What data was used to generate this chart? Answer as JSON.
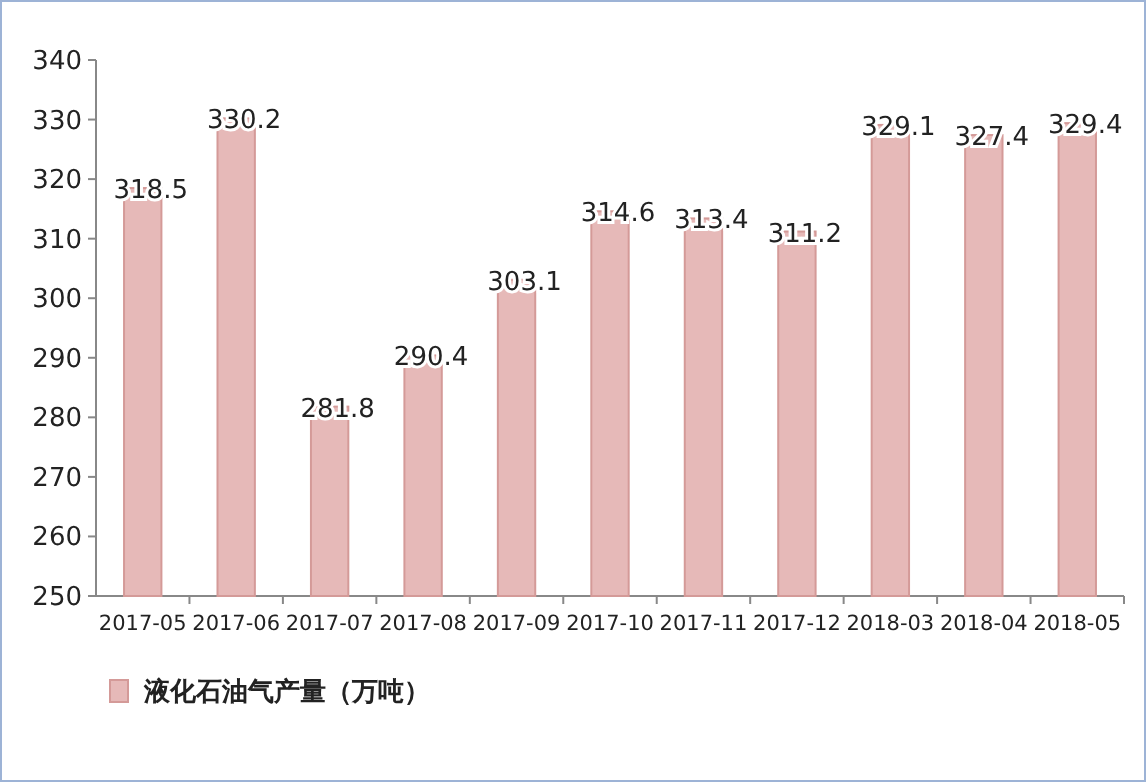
{
  "chart_data": {
    "type": "bar",
    "categories": [
      "2017-05",
      "2017-06",
      "2017-07",
      "2017-08",
      "2017-09",
      "2017-10",
      "2017-11",
      "2017-12",
      "2018-03",
      "2018-04",
      "2018-05"
    ],
    "series": [
      {
        "name": "液化石油气产量（万吨）",
        "color": "#e6b9b8",
        "values": [
          318.5,
          330.2,
          281.8,
          290.4,
          303.1,
          314.6,
          313.4,
          311.2,
          329.1,
          327.4,
          329.4
        ]
      }
    ],
    "ylim": [
      250,
      340
    ],
    "yticks": [
      250,
      260,
      270,
      280,
      290,
      300,
      310,
      320,
      330,
      340
    ],
    "data_labels": true,
    "legend": "bottom left",
    "grid": false
  }
}
